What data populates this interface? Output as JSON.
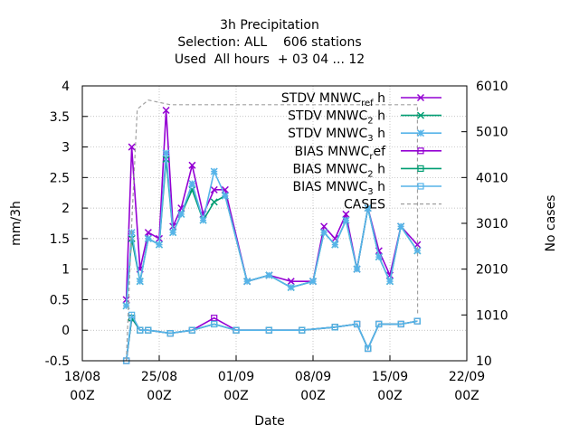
{
  "chart_data": {
    "type": "line",
    "title": [
      "3h Precipitation",
      "Selection: ALL    606 stations",
      "Used  All hours  + 03 04 ... 12"
    ],
    "xlabel": "Date",
    "ylabel": "mm/3h",
    "y2label": "No cases",
    "xlim": [
      "2023-08-18 00:00",
      "2023-09-22 00:00"
    ],
    "ylim": [
      -0.5,
      4
    ],
    "y2lim": [
      10,
      6010
    ],
    "x_ticks": [
      {
        "date": "2023-08-18 00:00",
        "line1": "18/08",
        "line2": "00Z"
      },
      {
        "date": "2023-08-25 00:00",
        "line1": "25/08",
        "line2": "00Z"
      },
      {
        "date": "2023-09-01 00:00",
        "line1": "01/09",
        "line2": "00Z"
      },
      {
        "date": "2023-09-08 00:00",
        "line1": "08/09",
        "line2": "00Z"
      },
      {
        "date": "2023-09-15 00:00",
        "line1": "15/09",
        "line2": "00Z"
      },
      {
        "date": "2023-09-22 00:00",
        "line1": "22/09",
        "line2": "00Z"
      }
    ],
    "y_ticks": [
      "-0.5",
      "0",
      "0.5",
      "1",
      "1.5",
      "2",
      "2.5",
      "3",
      "3.5",
      "4"
    ],
    "y2_ticks": [
      "10",
      "1010",
      "2010",
      "3010",
      "4010",
      "5010",
      "6010"
    ],
    "grid": true,
    "legend_position": "top-right",
    "data_span": [
      "2023-08-22 00:00",
      "2023-09-17 12:00"
    ],
    "series": [
      {
        "name": "STDV MNWC_ref h",
        "axis": "y",
        "color": "#9400d3",
        "marker": "x-star",
        "x": [
          "2023-08-22 00:00",
          "2023-08-22 12:00",
          "2023-08-23 06:00",
          "2023-08-24 00:00",
          "2023-08-25 00:00",
          "2023-08-25 15:00",
          "2023-08-26 06:00",
          "2023-08-27 00:00",
          "2023-08-28 00:00",
          "2023-08-29 00:00",
          "2023-08-30 00:00",
          "2023-08-31 00:00",
          "2023-09-02 00:00",
          "2023-09-04 00:00",
          "2023-09-06 00:00",
          "2023-09-08 00:00",
          "2023-09-09 00:00",
          "2023-09-10 00:00",
          "2023-09-11 00:00",
          "2023-09-12 00:00",
          "2023-09-13 00:00",
          "2023-09-14 00:00",
          "2023-09-15 00:00",
          "2023-09-16 00:00",
          "2023-09-17 12:00"
        ],
        "values": [
          0.5,
          3.0,
          1.0,
          1.6,
          1.5,
          3.6,
          1.7,
          2.0,
          2.7,
          1.9,
          2.3,
          2.3,
          0.8,
          0.9,
          0.8,
          0.8,
          1.7,
          1.5,
          1.9,
          1.0,
          2.0,
          1.3,
          0.9,
          1.7,
          1.4
        ]
      },
      {
        "name": "STDV MNWC_2 h",
        "axis": "y",
        "color": "#009e73",
        "marker": "x-star",
        "x": [
          "2023-08-22 00:00",
          "2023-08-22 12:00",
          "2023-08-23 06:00",
          "2023-08-24 00:00",
          "2023-08-25 00:00",
          "2023-08-25 15:00",
          "2023-08-26 06:00",
          "2023-08-27 00:00",
          "2023-08-28 00:00",
          "2023-08-29 00:00",
          "2023-08-30 00:00",
          "2023-08-31 00:00",
          "2023-09-02 00:00",
          "2023-09-04 00:00",
          "2023-09-06 00:00",
          "2023-09-08 00:00",
          "2023-09-09 00:00",
          "2023-09-10 00:00",
          "2023-09-11 00:00",
          "2023-09-12 00:00",
          "2023-09-13 00:00",
          "2023-09-14 00:00",
          "2023-09-15 00:00",
          "2023-09-16 00:00",
          "2023-09-17 12:00"
        ],
        "values": [
          0.4,
          1.5,
          0.8,
          1.5,
          1.4,
          2.8,
          1.6,
          1.9,
          2.3,
          1.8,
          2.1,
          2.2,
          0.8,
          0.9,
          0.7,
          0.8,
          1.6,
          1.4,
          1.8,
          1.0,
          2.0,
          1.2,
          0.8,
          1.7,
          1.3
        ]
      },
      {
        "name": "STDV MNWC_3 h",
        "axis": "y",
        "color": "#56b4e9",
        "marker": "star",
        "x": [
          "2023-08-22 00:00",
          "2023-08-22 12:00",
          "2023-08-23 06:00",
          "2023-08-24 00:00",
          "2023-08-25 00:00",
          "2023-08-25 15:00",
          "2023-08-26 06:00",
          "2023-08-27 00:00",
          "2023-08-28 00:00",
          "2023-08-29 00:00",
          "2023-08-30 00:00",
          "2023-08-31 00:00",
          "2023-09-02 00:00",
          "2023-09-04 00:00",
          "2023-09-06 00:00",
          "2023-09-08 00:00",
          "2023-09-09 00:00",
          "2023-09-10 00:00",
          "2023-09-11 00:00",
          "2023-09-12 00:00",
          "2023-09-13 00:00",
          "2023-09-14 00:00",
          "2023-09-15 00:00",
          "2023-09-16 00:00",
          "2023-09-17 12:00"
        ],
        "values": [
          0.4,
          1.6,
          0.8,
          1.5,
          1.4,
          2.9,
          1.6,
          1.9,
          2.4,
          1.8,
          2.6,
          2.2,
          0.8,
          0.9,
          0.7,
          0.8,
          1.6,
          1.4,
          1.8,
          1.0,
          2.0,
          1.2,
          0.8,
          1.7,
          1.3
        ]
      },
      {
        "name": "BIAS MNWC_ref",
        "axis": "y",
        "color": "#9400d3",
        "marker": "square",
        "x": [
          "2023-08-22 00:00",
          "2023-08-22 12:00",
          "2023-08-23 06:00",
          "2023-08-24 00:00",
          "2023-08-26 00:00",
          "2023-08-28 00:00",
          "2023-08-30 00:00",
          "2023-09-01 00:00",
          "2023-09-04 00:00",
          "2023-09-07 00:00",
          "2023-09-10 00:00",
          "2023-09-12 00:00",
          "2023-09-13 00:00",
          "2023-09-14 00:00",
          "2023-09-16 00:00",
          "2023-09-17 12:00"
        ],
        "values": [
          -0.5,
          0.2,
          0.0,
          0.0,
          -0.05,
          0.0,
          0.2,
          0.0,
          0.0,
          0.0,
          0.05,
          0.1,
          -0.3,
          0.1,
          0.1,
          0.15
        ]
      },
      {
        "name": "BIAS MNWC_2 h",
        "axis": "y",
        "color": "#009e73",
        "marker": "square",
        "x": [
          "2023-08-22 00:00",
          "2023-08-22 12:00",
          "2023-08-23 06:00",
          "2023-08-24 00:00",
          "2023-08-26 00:00",
          "2023-08-28 00:00",
          "2023-08-30 00:00",
          "2023-09-01 00:00",
          "2023-09-04 00:00",
          "2023-09-07 00:00",
          "2023-09-10 00:00",
          "2023-09-12 00:00",
          "2023-09-13 00:00",
          "2023-09-14 00:00",
          "2023-09-16 00:00",
          "2023-09-17 12:00"
        ],
        "values": [
          -0.5,
          0.2,
          0.0,
          0.0,
          -0.05,
          0.0,
          0.1,
          0.0,
          0.0,
          0.0,
          0.05,
          0.1,
          -0.3,
          0.1,
          0.1,
          0.15
        ]
      },
      {
        "name": "BIAS MNWC_3 h",
        "axis": "y",
        "color": "#56b4e9",
        "marker": "square",
        "x": [
          "2023-08-22 00:00",
          "2023-08-22 12:00",
          "2023-08-23 06:00",
          "2023-08-24 00:00",
          "2023-08-26 00:00",
          "2023-08-28 00:00",
          "2023-08-30 00:00",
          "2023-09-01 00:00",
          "2023-09-04 00:00",
          "2023-09-07 00:00",
          "2023-09-10 00:00",
          "2023-09-12 00:00",
          "2023-09-13 00:00",
          "2023-09-14 00:00",
          "2023-09-16 00:00",
          "2023-09-17 12:00"
        ],
        "values": [
          -0.5,
          0.25,
          0.0,
          0.0,
          -0.05,
          0.0,
          0.1,
          0.0,
          0.0,
          0.0,
          0.05,
          0.1,
          -0.3,
          0.1,
          0.1,
          0.15
        ]
      },
      {
        "name": "CASES",
        "axis": "y2",
        "color": "#a0a0a0",
        "marker": "none",
        "x": [
          "2023-08-22 00:00",
          "2023-08-22 12:00",
          "2023-08-23 00:00",
          "2023-08-24 00:00",
          "2023-08-26 00:00",
          "2023-08-28 00:00",
          "2023-08-30 00:00",
          "2023-09-01 00:00",
          "2023-09-04 00:00",
          "2023-09-07 00:00",
          "2023-09-10 00:00",
          "2023-09-13 00:00",
          "2023-09-16 00:00",
          "2023-09-17 12:00",
          "2023-09-17 12:30"
        ],
        "values": [
          10,
          3000,
          5500,
          5700,
          5600,
          5600,
          5600,
          5600,
          5600,
          5600,
          5600,
          5600,
          5600,
          5600,
          1010
        ]
      }
    ]
  }
}
